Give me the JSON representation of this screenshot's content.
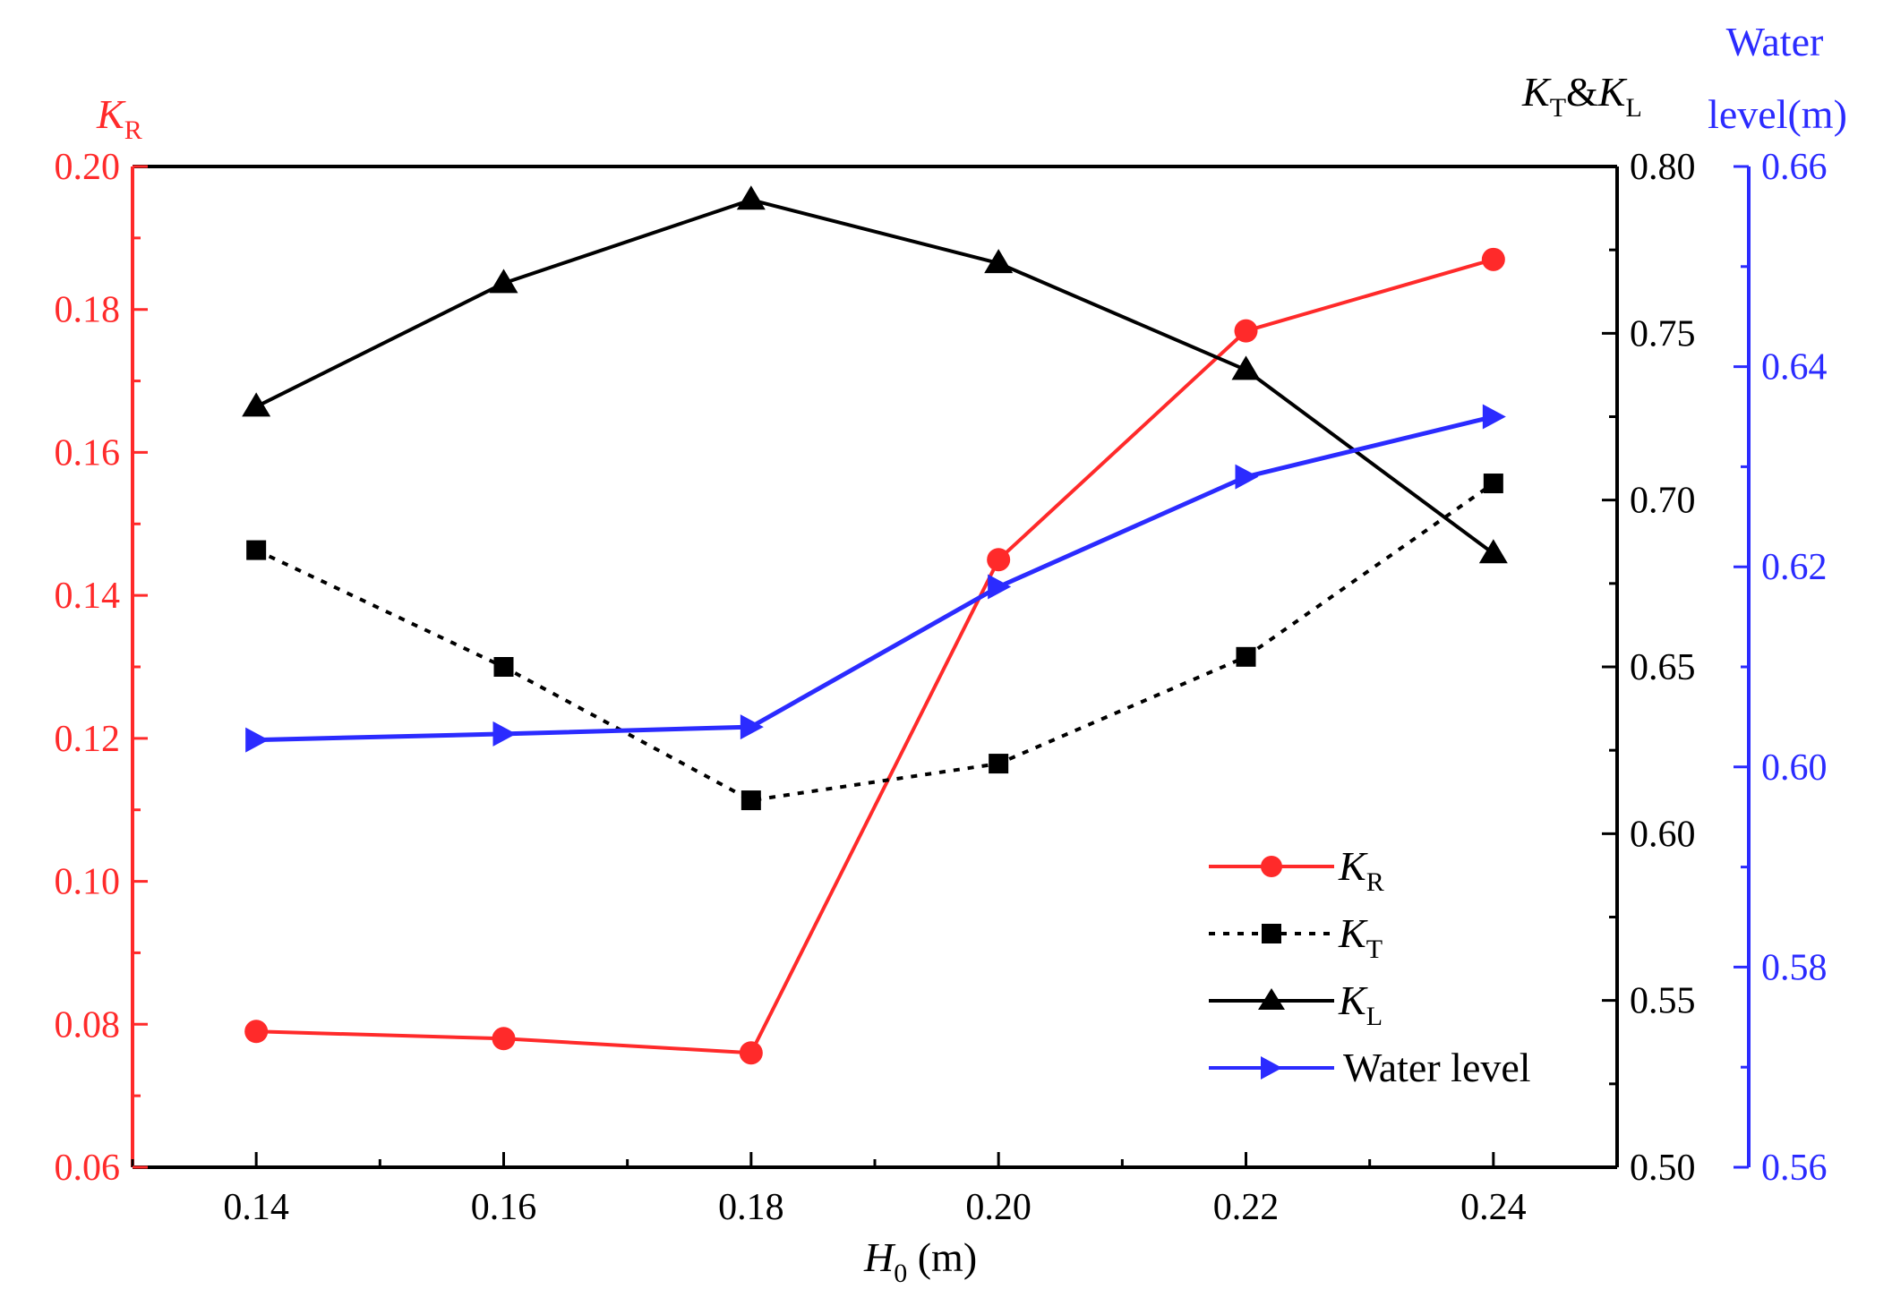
{
  "chart_data": {
    "type": "line",
    "x": [
      0.14,
      0.16,
      0.18,
      0.2,
      0.22,
      0.24
    ],
    "x_tick_labels": [
      "0.14",
      "0.16",
      "0.18",
      "0.20",
      "0.22",
      "0.24"
    ],
    "xlim": [
      0.13,
      0.25
    ],
    "xlabel": {
      "var": "H",
      "sub": "0",
      "unit": " (m)"
    },
    "axes": {
      "left": {
        "title": {
          "var": "K",
          "sub": "R"
        },
        "ylim": [
          0.06,
          0.2
        ],
        "ticks": [
          0.06,
          0.08,
          0.1,
          0.12,
          0.14,
          0.16,
          0.18,
          0.2
        ],
        "tick_labels": [
          "0.06",
          "0.08",
          "0.10",
          "0.12",
          "0.14",
          "0.16",
          "0.18",
          "0.20"
        ],
        "color": "#ff2a2a"
      },
      "right1": {
        "title": {
          "a": "K",
          "a_sub": "T",
          "amp": "&",
          "b": "K",
          "b_sub": "L"
        },
        "ylim": [
          0.5,
          0.8
        ],
        "ticks": [
          0.5,
          0.55,
          0.6,
          0.65,
          0.7,
          0.75,
          0.8
        ],
        "tick_labels": [
          "0.50",
          "0.55",
          "0.60",
          "0.65",
          "0.70",
          "0.75",
          "0.80"
        ],
        "color": "#000000"
      },
      "right2": {
        "title_line1": "Water",
        "title_line2": "level(m)",
        "ylim": [
          0.56,
          0.66
        ],
        "ticks": [
          0.56,
          0.58,
          0.6,
          0.62,
          0.64,
          0.66
        ],
        "tick_labels": [
          "0.56",
          "0.58",
          "0.60",
          "0.62",
          "0.64",
          "0.66"
        ],
        "color": "#2b2bff"
      }
    },
    "series": [
      {
        "key": "KR",
        "name": "K",
        "name_sub": "R",
        "axis": "left",
        "marker": "circle",
        "line": "solid",
        "color": "#ff2a2a",
        "values": [
          0.079,
          0.078,
          0.076,
          0.145,
          0.177,
          0.187
        ]
      },
      {
        "key": "KT",
        "name": "K",
        "name_sub": "T",
        "axis": "right1",
        "marker": "square",
        "line": "dotted",
        "color": "#000000",
        "values": [
          0.685,
          0.65,
          0.61,
          0.621,
          0.653,
          0.705
        ]
      },
      {
        "key": "KL",
        "name": "K",
        "name_sub": "L",
        "axis": "right1",
        "marker": "triangle",
        "line": "solid",
        "color": "#000000",
        "values": [
          0.728,
          0.765,
          0.79,
          0.771,
          0.739,
          0.684
        ]
      },
      {
        "key": "WL",
        "name": "Water level",
        "name_sub": "",
        "axis": "right2",
        "marker": "triangle-right",
        "line": "solid",
        "color": "#2b2bff",
        "values": [
          0.6027,
          0.6033,
          0.604,
          0.618,
          0.629,
          0.635
        ]
      }
    ],
    "legend": {
      "position": "bottom-right"
    }
  }
}
